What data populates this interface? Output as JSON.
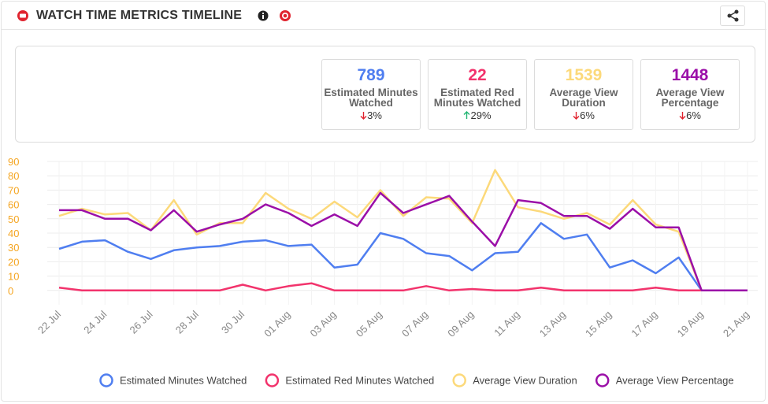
{
  "header": {
    "title": "WATCH TIME METRICS TIMELINE"
  },
  "kpis": [
    {
      "value": 789,
      "label": "Estimated Minutes Watched",
      "change": "3%",
      "color": "#4f7ef0",
      "direction": "down"
    },
    {
      "value": 22,
      "label": "Estimated Red Minutes Watched",
      "change": "29%",
      "color": "#f2336c",
      "direction": "up"
    },
    {
      "value": 1539,
      "label": "Average View Duration",
      "change": "6%",
      "color": "#fcd97a",
      "direction": "down"
    },
    {
      "value": 1448,
      "label": "Average View Percentage",
      "change": "6%",
      "color": "#9b0fa8",
      "direction": "down"
    }
  ],
  "chart_data": {
    "type": "line",
    "categories": [
      "22 Jul",
      null,
      "24 Jul",
      null,
      "26 Jul",
      null,
      "28 Jul",
      null,
      "30 Jul",
      null,
      "01 Aug",
      null,
      "03 Aug",
      null,
      "05 Aug",
      null,
      "07 Aug",
      null,
      "09 Aug",
      null,
      "11 Aug",
      null,
      "13 Aug",
      null,
      "15 Aug",
      null,
      "17 Aug",
      null,
      "19 Aug",
      null,
      "21 Aug"
    ],
    "series": [
      {
        "name": "Estimated Minutes Watched",
        "color": "#4f7ef0",
        "values": [
          29,
          34,
          35,
          27,
          22,
          28,
          30,
          31,
          34,
          35,
          31,
          32,
          16,
          18,
          40,
          36,
          26,
          24,
          14,
          26,
          27,
          47,
          36,
          39,
          16,
          21,
          12,
          23,
          0,
          0,
          0
        ]
      },
      {
        "name": "Estimated Red Minutes Watched",
        "color": "#f2336c",
        "values": [
          2,
          0,
          0,
          0,
          0,
          0,
          0,
          0,
          4,
          0,
          3,
          5,
          0,
          0,
          0,
          0,
          3,
          0,
          1,
          0,
          0,
          2,
          0,
          0,
          0,
          0,
          2,
          0,
          0,
          0,
          0
        ]
      },
      {
        "name": "Average View Duration",
        "color": "#fcd97a",
        "values": [
          52,
          57,
          53,
          54,
          42,
          63,
          39,
          47,
          47,
          68,
          57,
          50,
          62,
          51,
          70,
          52,
          65,
          64,
          47,
          84,
          58,
          55,
          50,
          54,
          46,
          63,
          46,
          41,
          0,
          0,
          0
        ]
      },
      {
        "name": "Average View Percentage",
        "color": "#9b0fa8",
        "values": [
          56,
          56,
          50,
          50,
          42,
          56,
          41,
          46,
          50,
          60,
          54,
          45,
          53,
          45,
          68,
          54,
          60,
          66,
          48,
          31,
          63,
          61,
          52,
          52,
          43,
          57,
          44,
          44,
          0,
          0,
          0
        ]
      }
    ],
    "ylim": [
      -10,
      90
    ],
    "yticks": [
      0,
      10,
      20,
      30,
      40,
      50,
      60,
      70,
      80,
      90
    ],
    "grid": true,
    "legend": "bottom"
  }
}
